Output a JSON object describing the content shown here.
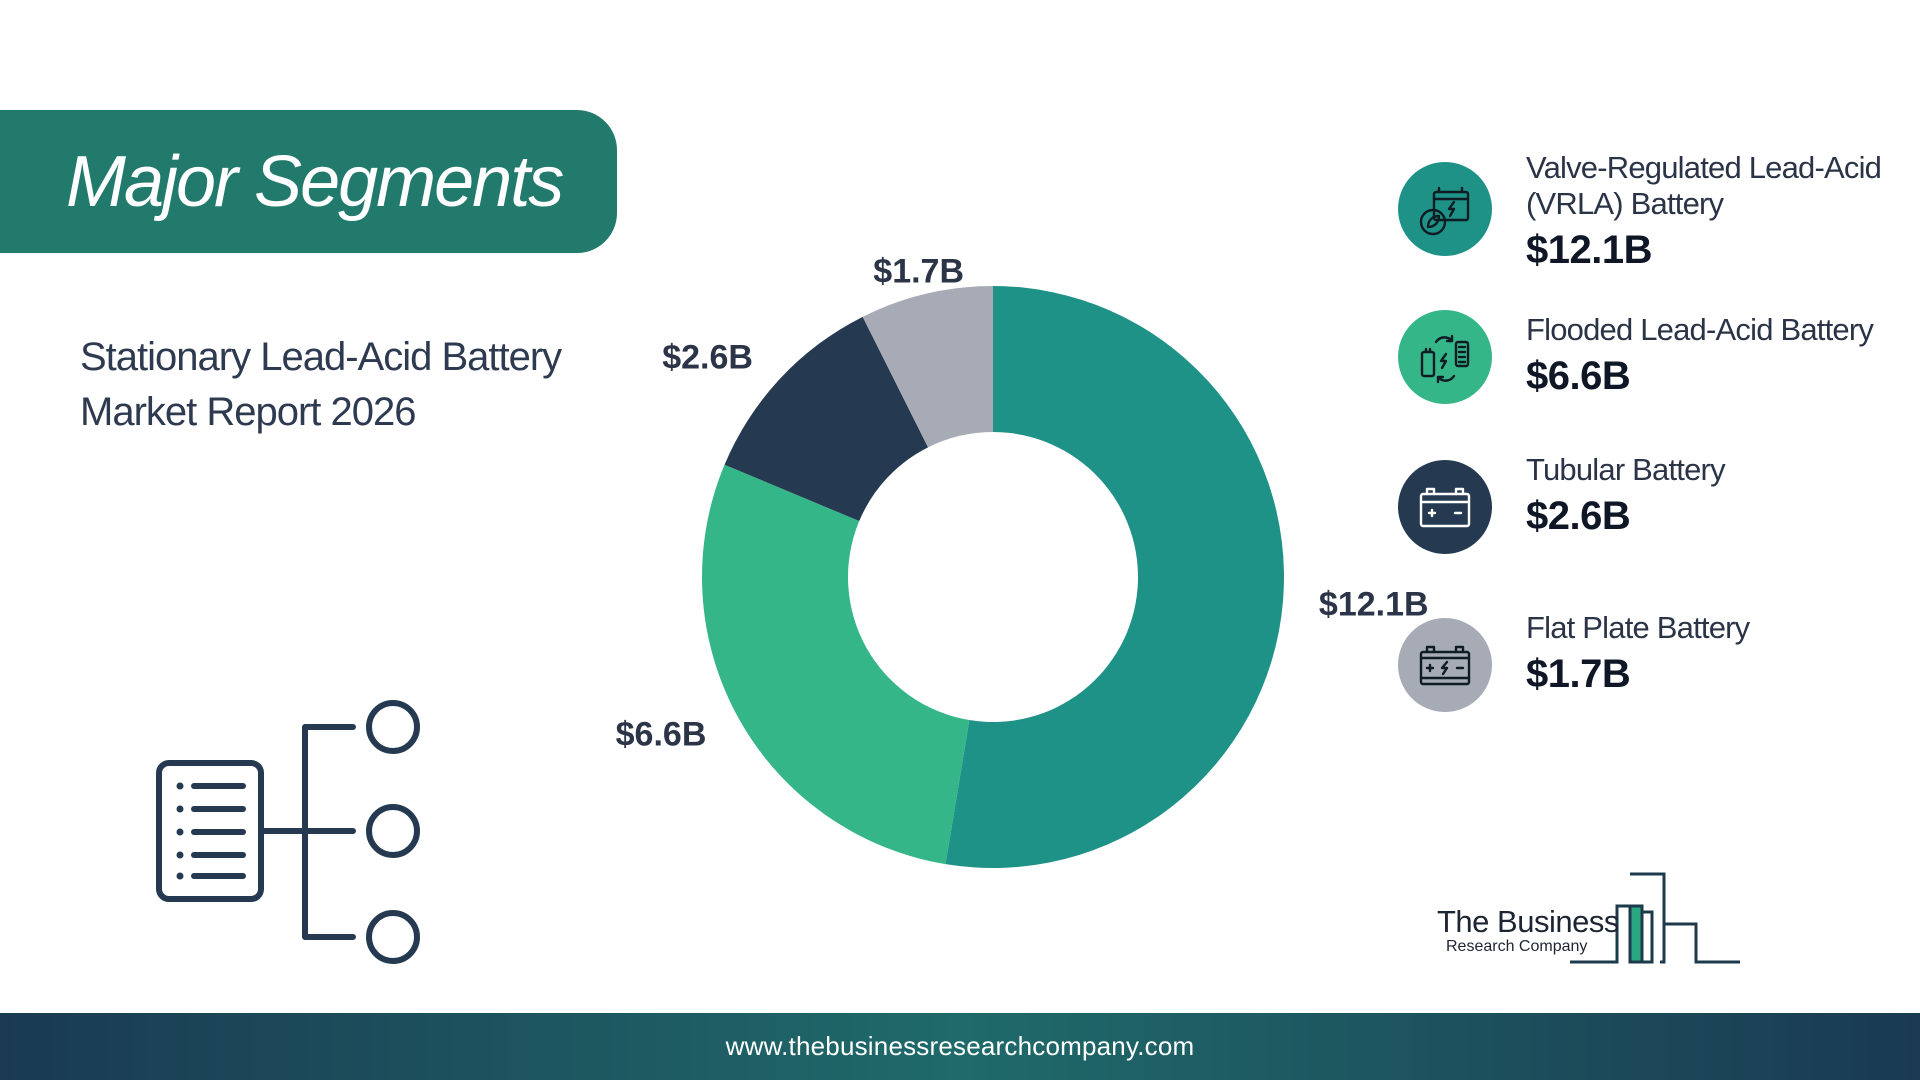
{
  "header": {
    "title": "Major Segments"
  },
  "subtitle": {
    "line1": "Stationary Lead-Acid Battery",
    "line2": "Market Report 2026"
  },
  "chart_data": {
    "type": "pie",
    "categories": [
      "Valve-Regulated Lead-Acid (VRLA) Battery",
      "Flooded Lead-Acid Battery",
      "Tubular Battery",
      "Flat Plate Battery"
    ],
    "values": [
      12.1,
      6.6,
      2.6,
      1.7
    ],
    "labels": [
      "$12.1B",
      "$6.6B",
      "$2.6B",
      "$1.7B"
    ],
    "colors": [
      "#1f9287",
      "#35b689",
      "#253a50",
      "#a6abb6"
    ],
    "donut": true
  },
  "legend": {
    "items": [
      {
        "name_line1": "Valve-Regulated Lead-Acid",
        "name_line2": "(VRLA) Battery",
        "value": "$12.1B",
        "icon": "battery-eco-icon",
        "color": "#1f9287"
      },
      {
        "name_line1": "Flooded Lead-Acid Battery",
        "name_line2": "",
        "value": "$6.6B",
        "icon": "battery-recycle-icon",
        "color": "#35b689"
      },
      {
        "name_line1": "Tubular Battery",
        "name_line2": "",
        "value": "$2.6B",
        "icon": "car-battery-icon",
        "color": "#253a50"
      },
      {
        "name_line1": "Flat Plate Battery",
        "name_line2": "",
        "value": "$1.7B",
        "icon": "battery-charge-icon",
        "color": "#a6abb6"
      }
    ]
  },
  "logo": {
    "line1": "The Business",
    "line2": "Research Company"
  },
  "footer": {
    "url": "www.thebusinessresearchcompany.com"
  }
}
